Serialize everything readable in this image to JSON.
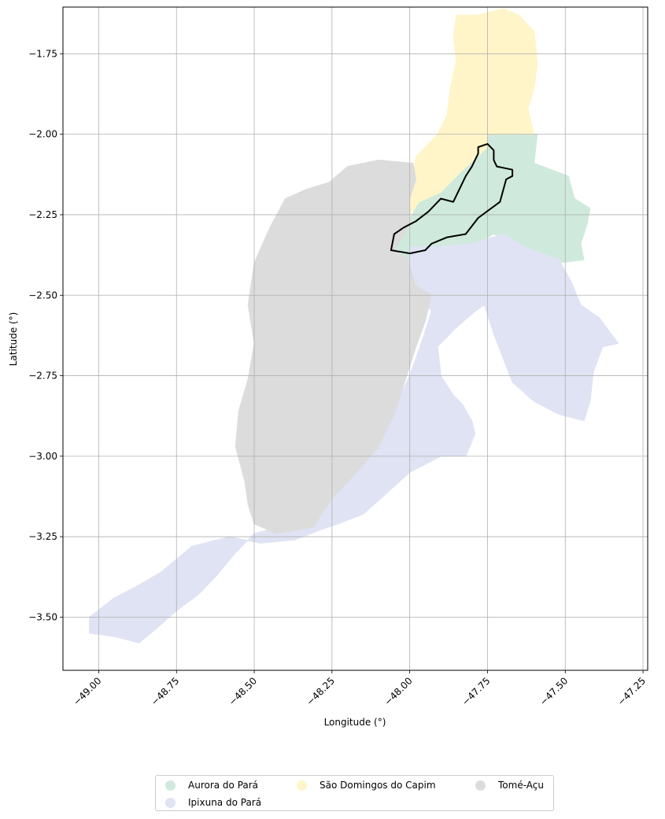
{
  "chart_data": {
    "type": "map",
    "xlabel": "Longitude (°)",
    "ylabel": "Latitude (°)",
    "xlim": [
      -49.115,
      -47.235
    ],
    "ylim": [
      -3.665,
      -1.605
    ],
    "x_ticks": [
      -49.0,
      -48.75,
      -48.5,
      -48.25,
      -48.0,
      -47.75,
      -47.5,
      -47.25
    ],
    "x_tick_labels": [
      "−49.00",
      "−48.75",
      "−48.50",
      "−48.25",
      "−48.00",
      "−47.75",
      "−47.50",
      "−47.25"
    ],
    "y_ticks": [
      -1.75,
      -2.0,
      -2.25,
      -2.5,
      -2.75,
      -3.0,
      -3.25,
      -3.5
    ],
    "y_tick_labels": [
      "−1.75",
      "−2.00",
      "−2.25",
      "−2.50",
      "−2.75",
      "−3.00",
      "−3.25",
      "−3.50"
    ],
    "grid": true,
    "legend_position": "bottom-center",
    "legend_columns": 3,
    "series": [
      {
        "name": "Aurora do Pará",
        "color": "#cfeadc",
        "polygon": [
          [
            -47.75,
            -2.0
          ],
          [
            -47.59,
            -2.0
          ],
          [
            -47.6,
            -2.09
          ],
          [
            -47.49,
            -2.13
          ],
          [
            -47.47,
            -2.2
          ],
          [
            -47.42,
            -2.23
          ],
          [
            -47.43,
            -2.28
          ],
          [
            -47.45,
            -2.34
          ],
          [
            -47.44,
            -2.39
          ],
          [
            -47.52,
            -2.4
          ],
          [
            -47.63,
            -2.36
          ],
          [
            -47.73,
            -2.31
          ],
          [
            -47.82,
            -2.36
          ],
          [
            -47.92,
            -2.39
          ],
          [
            -47.96,
            -2.47
          ],
          [
            -47.93,
            -2.5
          ],
          [
            -47.98,
            -2.51
          ],
          [
            -48.02,
            -2.47
          ],
          [
            -48.01,
            -2.38
          ],
          [
            -48.05,
            -2.36
          ],
          [
            -48.01,
            -2.28
          ],
          [
            -47.97,
            -2.21
          ],
          [
            -47.9,
            -2.18
          ],
          [
            -47.84,
            -2.12
          ],
          [
            -47.75,
            -2.04
          ]
        ]
      },
      {
        "name": "Ipixuna do Pará",
        "color": "#dfe3f3",
        "polygon": [
          [
            -48.0,
            -2.35
          ],
          [
            -47.93,
            -2.35
          ],
          [
            -47.8,
            -2.34
          ],
          [
            -47.7,
            -2.31
          ],
          [
            -47.63,
            -2.35
          ],
          [
            -47.52,
            -2.39
          ],
          [
            -47.48,
            -2.46
          ],
          [
            -47.45,
            -2.53
          ],
          [
            -47.39,
            -2.57
          ],
          [
            -47.33,
            -2.65
          ],
          [
            -47.38,
            -2.66
          ],
          [
            -47.41,
            -2.74
          ],
          [
            -47.42,
            -2.83
          ],
          [
            -47.44,
            -2.89
          ],
          [
            -47.52,
            -2.87
          ],
          [
            -47.6,
            -2.83
          ],
          [
            -47.67,
            -2.77
          ],
          [
            -47.73,
            -2.62
          ],
          [
            -47.76,
            -2.53
          ],
          [
            -47.79,
            -2.55
          ],
          [
            -47.85,
            -2.6
          ],
          [
            -47.91,
            -2.66
          ],
          [
            -47.9,
            -2.75
          ],
          [
            -47.86,
            -2.81
          ],
          [
            -47.83,
            -2.84
          ],
          [
            -47.8,
            -2.89
          ],
          [
            -47.79,
            -2.93
          ],
          [
            -47.82,
            -3.0
          ],
          [
            -47.9,
            -3.0
          ],
          [
            -48.0,
            -3.05
          ],
          [
            -48.08,
            -3.12
          ],
          [
            -48.15,
            -3.18
          ],
          [
            -48.23,
            -3.21
          ],
          [
            -48.29,
            -3.23
          ],
          [
            -48.37,
            -3.26
          ],
          [
            -48.48,
            -3.27
          ],
          [
            -48.58,
            -3.25
          ],
          [
            -48.7,
            -3.28
          ],
          [
            -48.8,
            -3.36
          ],
          [
            -48.87,
            -3.4
          ],
          [
            -48.95,
            -3.44
          ],
          [
            -49.03,
            -3.5
          ],
          [
            -49.03,
            -3.55
          ],
          [
            -48.95,
            -3.56
          ],
          [
            -48.87,
            -3.58
          ],
          [
            -48.82,
            -3.54
          ],
          [
            -48.75,
            -3.48
          ],
          [
            -48.68,
            -3.43
          ],
          [
            -48.62,
            -3.37
          ],
          [
            -48.56,
            -3.3
          ],
          [
            -48.5,
            -3.24
          ],
          [
            -48.42,
            -3.22
          ],
          [
            -48.3,
            -3.14
          ],
          [
            -48.2,
            -3.05
          ],
          [
            -48.12,
            -2.97
          ],
          [
            -48.05,
            -2.85
          ],
          [
            -48.0,
            -2.75
          ],
          [
            -47.96,
            -2.64
          ],
          [
            -47.93,
            -2.55
          ],
          [
            -47.97,
            -2.49
          ],
          [
            -48.0,
            -2.42
          ]
        ]
      },
      {
        "name": "São Domingos do Capim",
        "color": "#fff5c8",
        "polygon": [
          [
            -47.85,
            -1.63
          ],
          [
            -47.78,
            -1.63
          ],
          [
            -47.7,
            -1.61
          ],
          [
            -47.65,
            -1.63
          ],
          [
            -47.6,
            -1.68
          ],
          [
            -47.59,
            -1.78
          ],
          [
            -47.6,
            -1.86
          ],
          [
            -47.62,
            -1.92
          ],
          [
            -47.6,
            -2.0
          ],
          [
            -47.75,
            -2.0
          ],
          [
            -47.75,
            -2.04
          ],
          [
            -47.84,
            -2.12
          ],
          [
            -47.9,
            -2.18
          ],
          [
            -47.97,
            -2.21
          ],
          [
            -48.0,
            -2.25
          ],
          [
            -48.0,
            -2.16
          ],
          [
            -47.98,
            -2.07
          ],
          [
            -47.91,
            -2.0
          ],
          [
            -47.88,
            -1.94
          ],
          [
            -47.87,
            -1.86
          ],
          [
            -47.85,
            -1.77
          ],
          [
            -47.86,
            -1.7
          ]
        ]
      },
      {
        "name": "Tomé-Açu",
        "color": "#dcdcdc",
        "polygon": [
          [
            -47.99,
            -2.09
          ],
          [
            -48.1,
            -2.08
          ],
          [
            -48.2,
            -2.1
          ],
          [
            -48.26,
            -2.15
          ],
          [
            -48.33,
            -2.17
          ],
          [
            -48.4,
            -2.2
          ],
          [
            -48.45,
            -2.29
          ],
          [
            -48.5,
            -2.4
          ],
          [
            -48.52,
            -2.53
          ],
          [
            -48.5,
            -2.65
          ],
          [
            -48.52,
            -2.76
          ],
          [
            -48.55,
            -2.86
          ],
          [
            -48.56,
            -2.97
          ],
          [
            -48.53,
            -3.08
          ],
          [
            -48.52,
            -3.15
          ],
          [
            -48.5,
            -3.21
          ],
          [
            -48.43,
            -3.24
          ],
          [
            -48.31,
            -3.22
          ],
          [
            -48.25,
            -3.13
          ],
          [
            -48.17,
            -3.05
          ],
          [
            -48.1,
            -2.97
          ],
          [
            -48.05,
            -2.87
          ],
          [
            -48.02,
            -2.78
          ],
          [
            -47.98,
            -2.66
          ],
          [
            -47.95,
            -2.58
          ],
          [
            -47.93,
            -2.5
          ],
          [
            -47.98,
            -2.47
          ],
          [
            -48.01,
            -2.38
          ],
          [
            -48.05,
            -2.36
          ],
          [
            -48.0,
            -2.28
          ],
          [
            -48.0,
            -2.2
          ],
          [
            -47.98,
            -2.14
          ]
        ]
      }
    ],
    "highlight_outline": {
      "color": "#000000",
      "polygon": [
        [
          -48.06,
          -2.36
        ],
        [
          -48.0,
          -2.37
        ],
        [
          -47.95,
          -2.36
        ],
        [
          -47.93,
          -2.34
        ],
        [
          -47.88,
          -2.32
        ],
        [
          -47.82,
          -2.31
        ],
        [
          -47.78,
          -2.26
        ],
        [
          -47.71,
          -2.21
        ],
        [
          -47.69,
          -2.14
        ],
        [
          -47.67,
          -2.13
        ],
        [
          -47.67,
          -2.11
        ],
        [
          -47.72,
          -2.1
        ],
        [
          -47.73,
          -2.08
        ],
        [
          -47.73,
          -2.05
        ],
        [
          -47.75,
          -2.03
        ],
        [
          -47.78,
          -2.04
        ],
        [
          -47.78,
          -2.06
        ],
        [
          -47.8,
          -2.1
        ],
        [
          -47.82,
          -2.13
        ],
        [
          -47.84,
          -2.17
        ],
        [
          -47.86,
          -2.21
        ],
        [
          -47.9,
          -2.2
        ],
        [
          -47.94,
          -2.24
        ],
        [
          -47.98,
          -2.27
        ],
        [
          -48.02,
          -2.29
        ],
        [
          -48.05,
          -2.31
        ]
      ]
    }
  },
  "legend": {
    "items": [
      {
        "label": "Aurora do Pará",
        "color": "#cfeadc"
      },
      {
        "label": "Ipixuna do Pará",
        "color": "#dfe3f3"
      },
      {
        "label": "São Domingos do Capim",
        "color": "#fff5c8"
      },
      {
        "label": "Tomé-Açu",
        "color": "#dcdcdc"
      }
    ]
  }
}
